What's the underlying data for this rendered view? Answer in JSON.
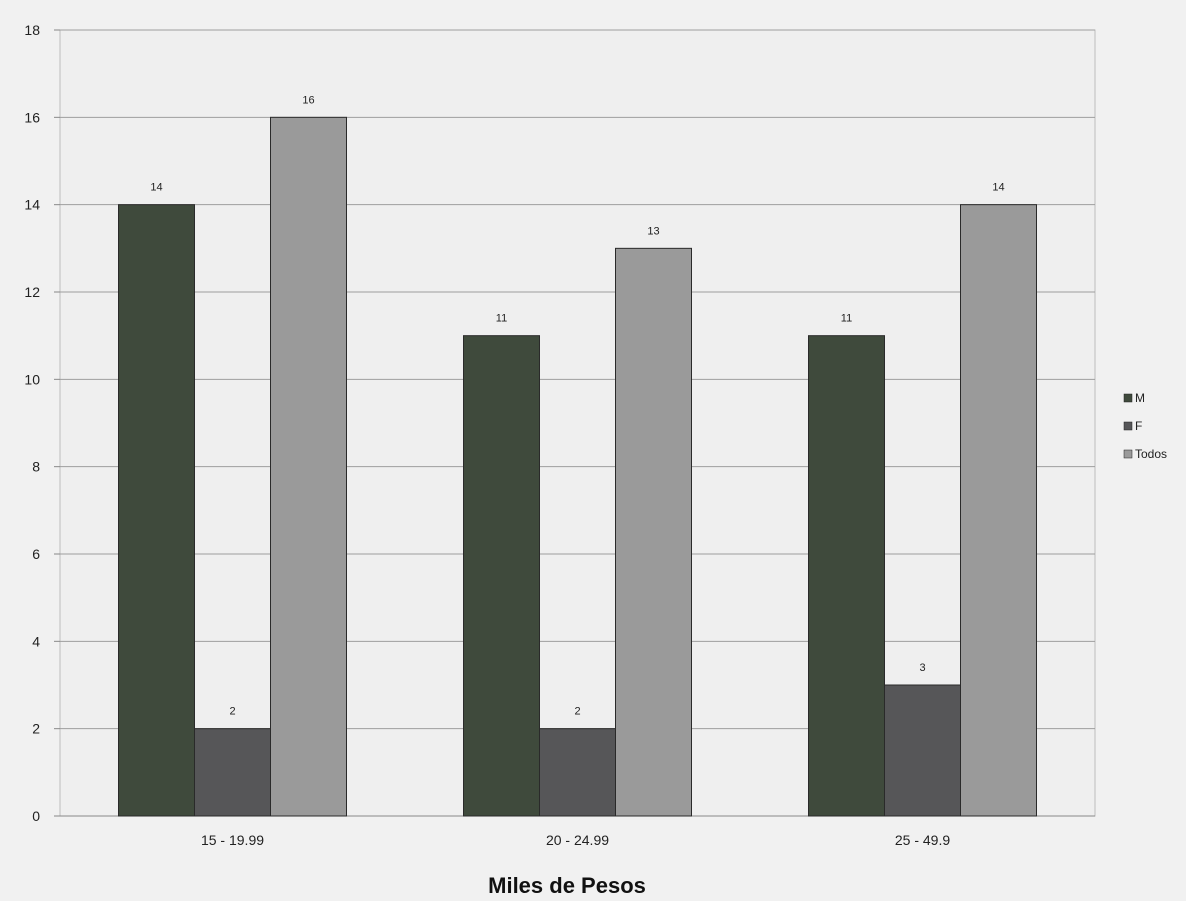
{
  "chart_data": {
    "type": "bar",
    "categories": [
      "15 - 19.99",
      "20 - 24.99",
      "25 - 49.9"
    ],
    "series": [
      {
        "name": "M",
        "values": [
          14,
          11,
          11
        ],
        "color": "#3f4a3c"
      },
      {
        "name": "F",
        "values": [
          2,
          2,
          3
        ],
        "color": "#565658"
      },
      {
        "name": "Todos",
        "values": [
          16,
          13,
          14
        ],
        "color": "#9a9a9a"
      }
    ],
    "xlabel": "Miles de Pesos",
    "ylabel": "",
    "ylim": [
      0,
      18
    ],
    "yticks": [
      0,
      2,
      4,
      6,
      8,
      10,
      12,
      14,
      16,
      18
    ],
    "grid": true,
    "legend": "right"
  }
}
